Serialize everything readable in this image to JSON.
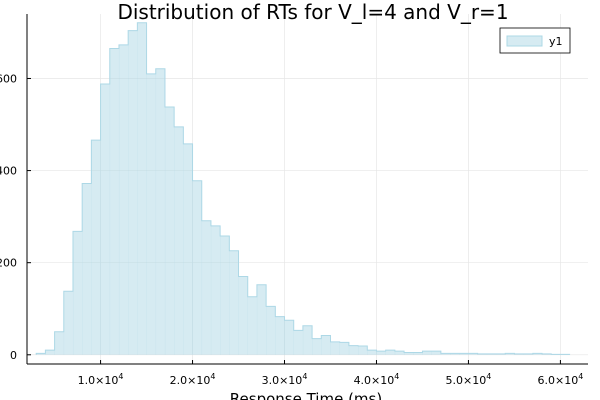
{
  "chart_data": {
    "type": "bar",
    "histogram": true,
    "title": "Distribution of RTs for V_l=4 and V_r=1",
    "xlabel": "Response Time (ms)",
    "ylabel": "",
    "xlim": [
      2000,
      63000
    ],
    "ylim": [
      -20,
      740
    ],
    "xticks": [
      {
        "value": 10000,
        "mantissa": "1.0",
        "base": "×10",
        "exp": "4"
      },
      {
        "value": 20000,
        "mantissa": "2.0",
        "base": "×10",
        "exp": "4"
      },
      {
        "value": 30000,
        "mantissa": "3.0",
        "base": "×10",
        "exp": "4"
      },
      {
        "value": 40000,
        "mantissa": "4.0",
        "base": "×10",
        "exp": "4"
      },
      {
        "value": 50000,
        "mantissa": "5.0",
        "base": "×10",
        "exp": "4"
      },
      {
        "value": 60000,
        "mantissa": "6.0",
        "base": "×10",
        "exp": "4"
      }
    ],
    "yticks": [
      {
        "value": 0,
        "label": "0"
      },
      {
        "value": 200,
        "label": "200"
      },
      {
        "value": 400,
        "label": "400"
      },
      {
        "value": 600,
        "label": "600"
      }
    ],
    "grid": true,
    "legend": {
      "position": "top-right",
      "entries": [
        "y1"
      ]
    },
    "series": [
      {
        "name": "y1",
        "color": "#add8e6",
        "fill_opacity": 0.5,
        "bin_width": 1000,
        "bin_start": 3000,
        "values": [
          3,
          10,
          50,
          138,
          268,
          372,
          466,
          588,
          665,
          673,
          704,
          721,
          610,
          621,
          538,
          495,
          458,
          378,
          291,
          280,
          258,
          226,
          170,
          126,
          152,
          105,
          83,
          75,
          53,
          63,
          35,
          42,
          28,
          27,
          20,
          19,
          10,
          8,
          10,
          8,
          5,
          5,
          8,
          8,
          3,
          3,
          3,
          3,
          2,
          2,
          2,
          3,
          2,
          2,
          3,
          2,
          1,
          1
        ]
      }
    ]
  }
}
